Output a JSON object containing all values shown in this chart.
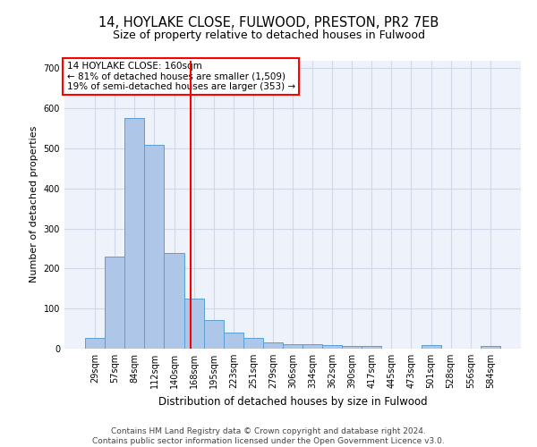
{
  "title1": "14, HOYLAKE CLOSE, FULWOOD, PRESTON, PR2 7EB",
  "title2": "Size of property relative to detached houses in Fulwood",
  "xlabel": "Distribution of detached houses by size in Fulwood",
  "ylabel": "Number of detached properties",
  "categories": [
    "29sqm",
    "57sqm",
    "84sqm",
    "112sqm",
    "140sqm",
    "168sqm",
    "195sqm",
    "223sqm",
    "251sqm",
    "279sqm",
    "306sqm",
    "334sqm",
    "362sqm",
    "390sqm",
    "417sqm",
    "445sqm",
    "473sqm",
    "501sqm",
    "528sqm",
    "556sqm",
    "584sqm"
  ],
  "values": [
    27,
    230,
    575,
    510,
    240,
    125,
    72,
    40,
    26,
    15,
    11,
    11,
    8,
    6,
    6,
    0,
    0,
    10,
    0,
    0,
    7
  ],
  "bar_color": "#aec6e8",
  "bar_edge_color": "#5a9fd4",
  "grid_color": "#d0d8e8",
  "background_color": "#eef2fb",
  "vline_x": 4.82,
  "vline_color": "red",
  "annotation_text": "14 HOYLAKE CLOSE: 160sqm\n← 81% of detached houses are smaller (1,509)\n19% of semi-detached houses are larger (353) →",
  "annotation_box_color": "white",
  "annotation_box_edge": "red",
  "ylim": [
    0,
    720
  ],
  "yticks": [
    0,
    100,
    200,
    300,
    400,
    500,
    600,
    700
  ],
  "footnote": "Contains HM Land Registry data © Crown copyright and database right 2024.\nContains public sector information licensed under the Open Government Licence v3.0.",
  "title1_fontsize": 10.5,
  "title2_fontsize": 9,
  "xlabel_fontsize": 8.5,
  "ylabel_fontsize": 8,
  "tick_fontsize": 7,
  "footnote_fontsize": 6.5,
  "annot_fontsize": 7.5
}
